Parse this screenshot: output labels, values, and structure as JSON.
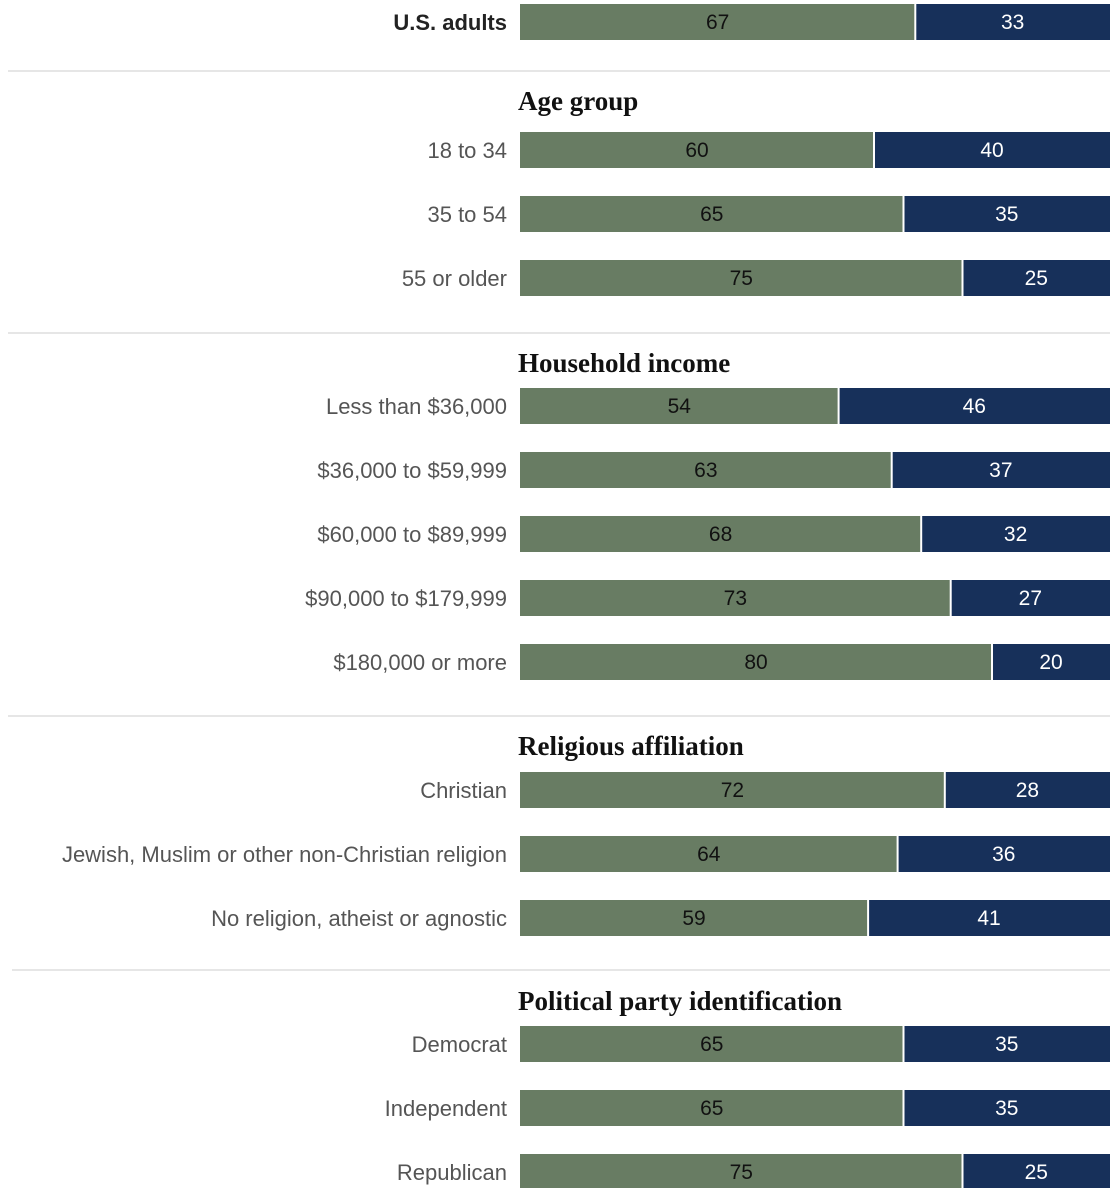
{
  "chart_data": {
    "type": "bar",
    "orientation": "horizontal",
    "stacked": true,
    "xlim": [
      0,
      100
    ],
    "grid": false,
    "colors": {
      "first": "#687c63",
      "second": "#17305a"
    },
    "rows": [
      {
        "kind": "total",
        "label": "U.S. adults",
        "values": [
          67,
          33
        ]
      },
      {
        "kind": "group",
        "title": "Age group"
      },
      {
        "kind": "row",
        "label": "18 to 34",
        "values": [
          60,
          40
        ]
      },
      {
        "kind": "row",
        "label": "35 to 54",
        "values": [
          65,
          35
        ]
      },
      {
        "kind": "row",
        "label": "55 or older",
        "values": [
          75,
          25
        ]
      },
      {
        "kind": "group",
        "title": "Household income"
      },
      {
        "kind": "row",
        "label": "Less than $36,000",
        "values": [
          54,
          46
        ]
      },
      {
        "kind": "row",
        "label": "$36,000 to $59,999",
        "values": [
          63,
          37
        ]
      },
      {
        "kind": "row",
        "label": "$60,000 to $89,999",
        "values": [
          68,
          32
        ]
      },
      {
        "kind": "row",
        "label": "$90,000 to $179,999",
        "values": [
          73,
          27
        ]
      },
      {
        "kind": "row",
        "label": "$180,000 or more",
        "values": [
          80,
          20
        ]
      },
      {
        "kind": "group",
        "title": "Religious affiliation"
      },
      {
        "kind": "row",
        "label": "Christian",
        "values": [
          72,
          28
        ]
      },
      {
        "kind": "row",
        "label": "Jewish, Muslim or other non-Christian religion",
        "values": [
          64,
          36
        ]
      },
      {
        "kind": "row",
        "label": "No religion, atheist or agnostic",
        "values": [
          59,
          41
        ]
      },
      {
        "kind": "group",
        "title": "Political party identification"
      },
      {
        "kind": "row",
        "label": "Democrat",
        "values": [
          65,
          35
        ]
      },
      {
        "kind": "row",
        "label": "Independent",
        "values": [
          65,
          35
        ]
      },
      {
        "kind": "row",
        "label": "Republican",
        "values": [
          75,
          25
        ]
      }
    ]
  }
}
